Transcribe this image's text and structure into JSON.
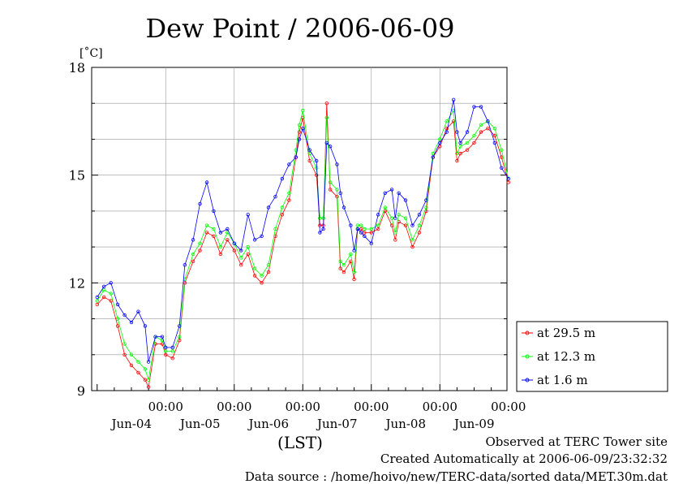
{
  "chart_data": {
    "type": "line",
    "title": "Dew Point / 2006-06-09",
    "ylabel": "[˚C]",
    "xlabel": "(LST)",
    "ylim": [
      9,
      18
    ],
    "yticks": [
      "18",
      "15",
      "12",
      "9"
    ],
    "xlim": [
      0,
      6
    ],
    "x_ticks": [
      {
        "x": 1,
        "time": "00:00",
        "date": "Jun-04"
      },
      {
        "x": 2,
        "time": "00:00",
        "date": "Jun-05"
      },
      {
        "x": 3,
        "time": "00:00",
        "date": "Jun-06"
      },
      {
        "x": 4,
        "time": "00:00",
        "date": "Jun-07"
      },
      {
        "x": 5,
        "time": "00:00",
        "date": "Jun-08"
      },
      {
        "x": 6,
        "time": "00:00",
        "date": "Jun-09"
      }
    ],
    "x_units": "days",
    "grid": true,
    "legend_position": "lower-right, outside plot",
    "series": [
      {
        "name": "at 29.5 m",
        "color": "#ff0000",
        "points": [
          [
            0.0,
            11.4
          ],
          [
            0.1,
            11.6
          ],
          [
            0.2,
            11.5
          ],
          [
            0.3,
            10.8
          ],
          [
            0.4,
            10.0
          ],
          [
            0.5,
            9.7
          ],
          [
            0.6,
            9.5
          ],
          [
            0.7,
            9.3
          ],
          [
            0.75,
            9.1
          ],
          [
            0.85,
            10.3
          ],
          [
            0.95,
            10.3
          ],
          [
            1.0,
            10.0
          ],
          [
            1.1,
            9.9
          ],
          [
            1.2,
            10.4
          ],
          [
            1.28,
            12.0
          ],
          [
            1.4,
            12.6
          ],
          [
            1.5,
            12.9
          ],
          [
            1.6,
            13.4
          ],
          [
            1.7,
            13.3
          ],
          [
            1.8,
            12.8
          ],
          [
            1.9,
            13.2
          ],
          [
            2.0,
            12.9
          ],
          [
            2.1,
            12.5
          ],
          [
            2.2,
            12.8
          ],
          [
            2.3,
            12.2
          ],
          [
            2.4,
            12.0
          ],
          [
            2.5,
            12.3
          ],
          [
            2.6,
            13.3
          ],
          [
            2.7,
            13.9
          ],
          [
            2.8,
            14.3
          ],
          [
            2.9,
            15.5
          ],
          [
            2.95,
            16.2
          ],
          [
            3.0,
            16.6
          ],
          [
            3.1,
            15.4
          ],
          [
            3.2,
            15.0
          ],
          [
            3.25,
            13.6
          ],
          [
            3.3,
            13.6
          ],
          [
            3.35,
            17.0
          ],
          [
            3.4,
            14.6
          ],
          [
            3.5,
            14.4
          ],
          [
            3.55,
            12.4
          ],
          [
            3.6,
            12.3
          ],
          [
            3.7,
            12.6
          ],
          [
            3.75,
            12.1
          ],
          [
            3.8,
            13.5
          ],
          [
            3.85,
            13.5
          ],
          [
            3.9,
            13.4
          ],
          [
            4.0,
            13.4
          ],
          [
            4.1,
            13.5
          ],
          [
            4.2,
            14.0
          ],
          [
            4.3,
            13.6
          ],
          [
            4.35,
            13.2
          ],
          [
            4.4,
            13.7
          ],
          [
            4.5,
            13.6
          ],
          [
            4.6,
            13.0
          ],
          [
            4.7,
            13.4
          ],
          [
            4.8,
            14.0
          ],
          [
            4.9,
            15.5
          ],
          [
            5.0,
            15.8
          ],
          [
            5.1,
            16.3
          ],
          [
            5.2,
            16.5
          ],
          [
            5.25,
            15.4
          ],
          [
            5.3,
            15.6
          ],
          [
            5.4,
            15.7
          ],
          [
            5.5,
            15.9
          ],
          [
            5.6,
            16.2
          ],
          [
            5.7,
            16.3
          ],
          [
            5.8,
            16.1
          ],
          [
            5.9,
            15.5
          ],
          [
            6.0,
            14.8
          ]
        ]
      },
      {
        "name": "at 12.3 m",
        "color": "#00ff00",
        "points": [
          [
            0.0,
            11.5
          ],
          [
            0.1,
            11.8
          ],
          [
            0.2,
            11.7
          ],
          [
            0.3,
            11.0
          ],
          [
            0.4,
            10.3
          ],
          [
            0.5,
            10.0
          ],
          [
            0.6,
            9.8
          ],
          [
            0.7,
            9.6
          ],
          [
            0.75,
            9.3
          ],
          [
            0.85,
            10.5
          ],
          [
            0.95,
            10.4
          ],
          [
            1.0,
            10.1
          ],
          [
            1.1,
            10.1
          ],
          [
            1.2,
            10.5
          ],
          [
            1.28,
            12.1
          ],
          [
            1.4,
            12.8
          ],
          [
            1.5,
            13.1
          ],
          [
            1.6,
            13.6
          ],
          [
            1.7,
            13.5
          ],
          [
            1.8,
            13.0
          ],
          [
            1.9,
            13.4
          ],
          [
            2.0,
            13.1
          ],
          [
            2.1,
            12.7
          ],
          [
            2.2,
            13.0
          ],
          [
            2.3,
            12.4
          ],
          [
            2.4,
            12.2
          ],
          [
            2.5,
            12.5
          ],
          [
            2.6,
            13.5
          ],
          [
            2.7,
            14.1
          ],
          [
            2.8,
            14.5
          ],
          [
            2.9,
            15.7
          ],
          [
            2.95,
            16.4
          ],
          [
            3.0,
            16.8
          ],
          [
            3.1,
            15.6
          ],
          [
            3.2,
            15.2
          ],
          [
            3.25,
            13.8
          ],
          [
            3.3,
            13.8
          ],
          [
            3.35,
            16.6
          ],
          [
            3.4,
            14.8
          ],
          [
            3.5,
            14.6
          ],
          [
            3.55,
            12.6
          ],
          [
            3.6,
            12.5
          ],
          [
            3.7,
            12.8
          ],
          [
            3.75,
            12.3
          ],
          [
            3.8,
            13.6
          ],
          [
            3.85,
            13.6
          ],
          [
            3.9,
            13.5
          ],
          [
            4.0,
            13.5
          ],
          [
            4.1,
            13.6
          ],
          [
            4.2,
            14.1
          ],
          [
            4.3,
            13.8
          ],
          [
            4.35,
            13.4
          ],
          [
            4.4,
            13.9
          ],
          [
            4.5,
            13.8
          ],
          [
            4.6,
            13.2
          ],
          [
            4.7,
            13.6
          ],
          [
            4.8,
            14.1
          ],
          [
            4.9,
            15.6
          ],
          [
            5.0,
            16.0
          ],
          [
            5.1,
            16.5
          ],
          [
            5.2,
            16.8
          ],
          [
            5.25,
            15.6
          ],
          [
            5.3,
            15.8
          ],
          [
            5.4,
            15.9
          ],
          [
            5.5,
            16.1
          ],
          [
            5.6,
            16.4
          ],
          [
            5.7,
            16.5
          ],
          [
            5.8,
            16.3
          ],
          [
            5.9,
            15.7
          ],
          [
            6.0,
            14.9
          ]
        ]
      },
      {
        "name": "at 1.6 m",
        "color": "#0000ff",
        "points": [
          [
            0.0,
            11.6
          ],
          [
            0.1,
            11.9
          ],
          [
            0.2,
            12.0
          ],
          [
            0.3,
            11.4
          ],
          [
            0.4,
            11.1
          ],
          [
            0.5,
            10.9
          ],
          [
            0.6,
            11.2
          ],
          [
            0.7,
            10.8
          ],
          [
            0.75,
            9.8
          ],
          [
            0.85,
            10.5
          ],
          [
            0.95,
            10.5
          ],
          [
            1.0,
            10.2
          ],
          [
            1.1,
            10.2
          ],
          [
            1.2,
            10.8
          ],
          [
            1.28,
            12.5
          ],
          [
            1.4,
            13.2
          ],
          [
            1.5,
            14.2
          ],
          [
            1.6,
            14.8
          ],
          [
            1.7,
            14.0
          ],
          [
            1.8,
            13.4
          ],
          [
            1.9,
            13.5
          ],
          [
            2.0,
            13.1
          ],
          [
            2.1,
            12.9
          ],
          [
            2.2,
            13.9
          ],
          [
            2.3,
            13.2
          ],
          [
            2.4,
            13.3
          ],
          [
            2.5,
            14.1
          ],
          [
            2.6,
            14.4
          ],
          [
            2.7,
            14.9
          ],
          [
            2.8,
            15.3
          ],
          [
            2.9,
            15.5
          ],
          [
            2.95,
            16.0
          ],
          [
            3.0,
            16.3
          ],
          [
            3.1,
            15.7
          ],
          [
            3.2,
            15.4
          ],
          [
            3.25,
            13.4
          ],
          [
            3.3,
            13.5
          ],
          [
            3.35,
            15.9
          ],
          [
            3.4,
            15.8
          ],
          [
            3.5,
            15.3
          ],
          [
            3.55,
            14.5
          ],
          [
            3.6,
            14.1
          ],
          [
            3.7,
            13.6
          ],
          [
            3.75,
            12.9
          ],
          [
            3.8,
            13.5
          ],
          [
            3.85,
            13.4
          ],
          [
            3.9,
            13.3
          ],
          [
            4.0,
            13.1
          ],
          [
            4.1,
            13.9
          ],
          [
            4.2,
            14.5
          ],
          [
            4.3,
            14.6
          ],
          [
            4.35,
            13.8
          ],
          [
            4.4,
            14.5
          ],
          [
            4.5,
            14.3
          ],
          [
            4.6,
            13.6
          ],
          [
            4.7,
            13.9
          ],
          [
            4.8,
            14.3
          ],
          [
            4.9,
            15.5
          ],
          [
            5.0,
            15.9
          ],
          [
            5.1,
            16.2
          ],
          [
            5.2,
            17.1
          ],
          [
            5.25,
            16.2
          ],
          [
            5.3,
            15.9
          ],
          [
            5.4,
            16.2
          ],
          [
            5.5,
            16.9
          ],
          [
            5.6,
            16.9
          ],
          [
            5.7,
            16.5
          ],
          [
            5.8,
            15.9
          ],
          [
            5.9,
            15.2
          ],
          [
            6.0,
            14.9
          ]
        ]
      }
    ]
  },
  "footer": {
    "observed": "Observed at TERC Tower site",
    "created": "Created Automatically at 2006-06-09/23:32:32",
    "source": "Data source : /home/hoivo/new/TERC-data/sorted  data/MET.30m.dat"
  }
}
